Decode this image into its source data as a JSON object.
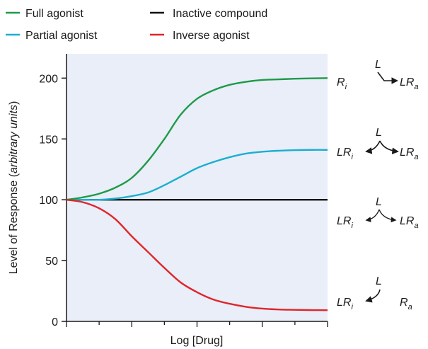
{
  "chart_data": {
    "type": "line",
    "xlabel": "Log [Drug]",
    "ylabel_main": "Level of Response (",
    "ylabel_italic": "arbitrary units",
    "ylabel_close": ")",
    "ylim": [
      0,
      220
    ],
    "yticks": [
      0,
      50,
      100,
      150,
      200
    ],
    "x": [
      0,
      0.5,
      1,
      1.5,
      2,
      2.5,
      3,
      3.5,
      4,
      4.5,
      5,
      5.5,
      6,
      6.5,
      7,
      7.5,
      8
    ],
    "xlim": [
      0,
      8
    ],
    "background": "#e9eef8",
    "series": [
      {
        "name": "Full agonist",
        "color": "#1f9a48",
        "values": [
          100,
          102,
          105,
          110,
          118,
          132,
          150,
          170,
          183,
          190,
          194.5,
          197,
          198.5,
          199,
          199.5,
          199.8,
          200
        ]
      },
      {
        "name": "Partial agonist",
        "color": "#1aafcf",
        "values": [
          100,
          100,
          100,
          101,
          103,
          106,
          112,
          119,
          126,
          131,
          135,
          138,
          139.5,
          140.3,
          140.8,
          141,
          141
        ]
      },
      {
        "name": "Inactive compound",
        "color": "#111111",
        "values": [
          100,
          100,
          100,
          100,
          100,
          100,
          100,
          100,
          100,
          100,
          100,
          100,
          100,
          100,
          100,
          100,
          100
        ]
      },
      {
        "name": "Inverse agonist",
        "color": "#e0252b",
        "values": [
          100,
          98,
          93,
          84,
          70,
          57,
          44,
          32,
          24,
          18,
          14.5,
          12,
          10.5,
          9.8,
          9.5,
          9.3,
          9.2
        ]
      }
    ],
    "legend": {
      "placement": "top-left",
      "order": [
        0,
        2,
        1,
        3
      ]
    },
    "annotations": [
      {
        "id": "full",
        "left": "R",
        "left_sub": "i",
        "right": "LR",
        "right_sub": "a",
        "ligand": "L",
        "value": 200
      },
      {
        "id": "partial",
        "left": "LR",
        "left_sub": "i",
        "right": "LR",
        "right_sub": "a",
        "ligand": "L",
        "value": 141
      },
      {
        "id": "inactive",
        "left": "LR",
        "left_sub": "i",
        "right": "LR",
        "right_sub": "a",
        "ligand": "L",
        "value": 100
      },
      {
        "id": "inverse",
        "left": "LR",
        "left_sub": "i",
        "right": "R",
        "right_sub": "a",
        "ligand": "L",
        "value": 9
      }
    ]
  }
}
